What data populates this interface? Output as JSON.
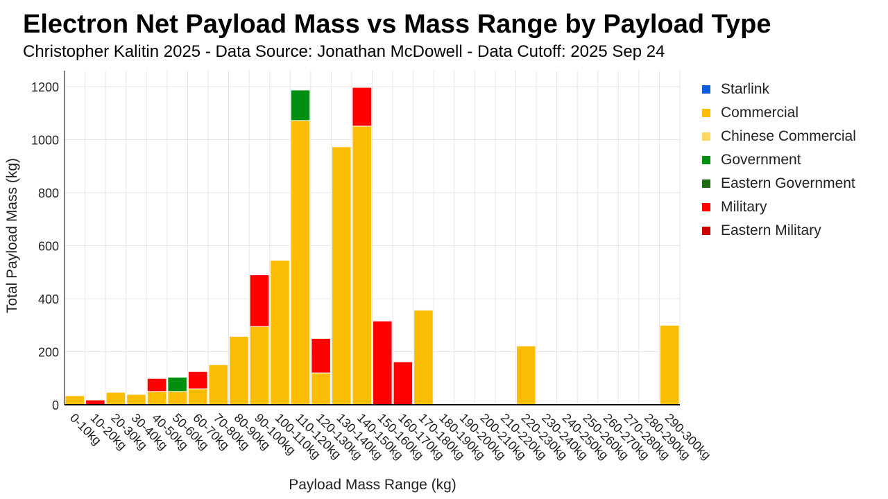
{
  "chart_data": {
    "type": "bar",
    "stacked": true,
    "title": "Electron Net Payload Mass vs Mass Range by Payload Type",
    "subtitle": "Christopher Kalitin 2025 - Data Source: Jonathan McDowell - Data Cutoff: 2025 Sep 24",
    "xlabel": "Payload Mass Range (kg)",
    "ylabel": "Total Payload Mass (kg)",
    "ylim": [
      0,
      1260
    ],
    "yticks": [
      0,
      200,
      400,
      600,
      800,
      1000,
      1200
    ],
    "grid": true,
    "legend_position": "right",
    "categories": [
      "0-10kg",
      "10-20kg",
      "20-30kg",
      "30-40kg",
      "40-50kg",
      "50-60kg",
      "60-70kg",
      "70-80kg",
      "80-90kg",
      "90-100kg",
      "100-110kg",
      "110-120kg",
      "120-130kg",
      "130-140kg",
      "140-150kg",
      "150-160kg",
      "160-170kg",
      "170-180kg",
      "180-190kg",
      "190-200kg",
      "200-210kg",
      "210-220kg",
      "220-230kg",
      "230-240kg",
      "240-250kg",
      "250-260kg",
      "260-270kg",
      "270-280kg",
      "280-290kg",
      "290-300kg"
    ],
    "series": [
      {
        "name": "Starlink",
        "color": "#0b5ed7",
        "values": [
          0,
          0,
          0,
          0,
          0,
          0,
          0,
          0,
          0,
          0,
          0,
          0,
          0,
          0,
          0,
          0,
          0,
          0,
          0,
          0,
          0,
          0,
          0,
          0,
          0,
          0,
          0,
          0,
          0,
          0
        ]
      },
      {
        "name": "Commercial",
        "color": "#fbbc04",
        "values": [
          34,
          0,
          47,
          39,
          50,
          50,
          60,
          151,
          258,
          295,
          545,
          1072,
          120,
          973,
          1051,
          0,
          0,
          357,
          0,
          0,
          0,
          0,
          222,
          0,
          0,
          0,
          0,
          0,
          0,
          300
        ]
      },
      {
        "name": "Chinese Commercial",
        "color": "#fdd663",
        "values": [
          0,
          0,
          0,
          0,
          0,
          0,
          0,
          0,
          0,
          0,
          0,
          0,
          0,
          0,
          0,
          0,
          0,
          0,
          0,
          0,
          0,
          0,
          0,
          0,
          0,
          0,
          0,
          0,
          0,
          0
        ]
      },
      {
        "name": "Government",
        "color": "#008f11",
        "values": [
          0,
          0,
          0,
          0,
          0,
          54,
          0,
          0,
          0,
          0,
          0,
          115,
          0,
          0,
          0,
          0,
          0,
          0,
          0,
          0,
          0,
          0,
          0,
          0,
          0,
          0,
          0,
          0,
          0,
          0
        ]
      },
      {
        "name": "Eastern Government",
        "color": "#1e6b0f",
        "values": [
          0,
          0,
          0,
          0,
          0,
          0,
          0,
          0,
          0,
          0,
          0,
          0,
          0,
          0,
          0,
          0,
          0,
          0,
          0,
          0,
          0,
          0,
          0,
          0,
          0,
          0,
          0,
          0,
          0,
          0
        ]
      },
      {
        "name": "Military",
        "color": "#ff0000",
        "values": [
          0,
          18,
          0,
          0,
          49,
          0,
          65,
          0,
          0,
          195,
          0,
          0,
          130,
          0,
          146,
          316,
          162,
          0,
          0,
          0,
          0,
          0,
          0,
          0,
          0,
          0,
          0,
          0,
          0,
          0
        ]
      },
      {
        "name": "Eastern Military",
        "color": "#cc0000",
        "values": [
          0,
          0,
          0,
          0,
          0,
          0,
          0,
          0,
          0,
          0,
          0,
          0,
          0,
          0,
          0,
          0,
          0,
          0,
          0,
          0,
          0,
          0,
          0,
          0,
          0,
          0,
          0,
          0,
          0,
          0
        ]
      }
    ]
  }
}
